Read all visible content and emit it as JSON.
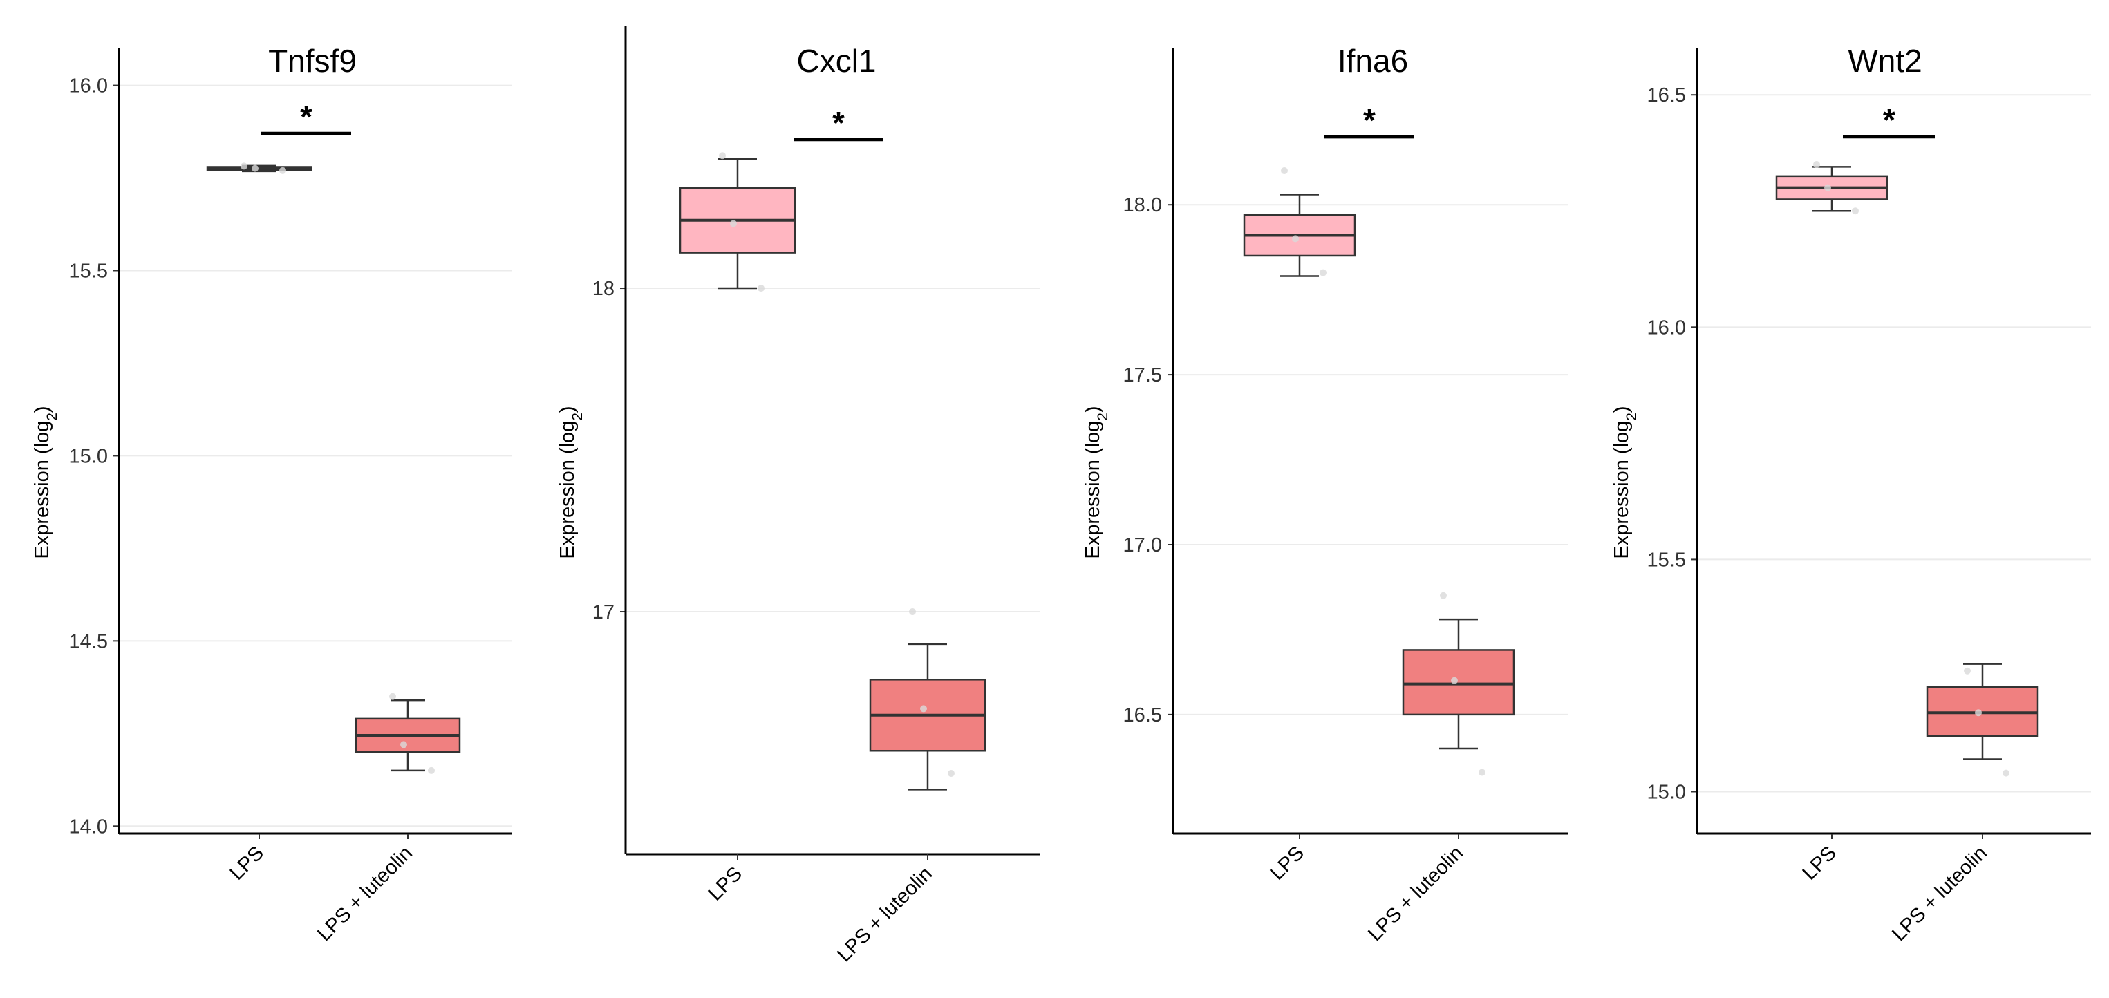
{
  "colors": {
    "lps": "#FFB6C1",
    "lps_luteolin": "#F08080",
    "grid": "#EBEBEB",
    "axis": "#000000",
    "point": "#D9D9D9"
  },
  "chart_data": [
    {
      "type": "box",
      "title": "Tnfsf9",
      "ylabel_main": "Expression (log",
      "ylabel_sub": "2",
      "ylabel_end": ")",
      "categories": [
        "LPS",
        "LPS + luteolin"
      ],
      "ylim": [
        13.98,
        16.1
      ],
      "yticks": [
        14.0,
        14.5,
        15.0,
        15.5,
        16.0
      ],
      "ytick_labels": [
        "14.0",
        "14.5",
        "15.0",
        "15.5",
        "16.0"
      ],
      "boxes": [
        {
          "category": "LPS",
          "min": 15.768,
          "q1": 15.772,
          "median": 15.776,
          "q3": 15.78,
          "max": 15.783,
          "points": [
            15.782,
            15.77,
            15.776
          ]
        },
        {
          "category": "LPS + luteolin",
          "min": 14.15,
          "q1": 14.2,
          "median": 14.245,
          "q3": 14.29,
          "max": 14.34,
          "points": [
            14.35,
            14.15,
            14.22
          ]
        }
      ],
      "significance": {
        "label": "*",
        "y": 15.87
      }
    },
    {
      "type": "box",
      "title": "Cxcl1",
      "ylabel_main": "Expression (log",
      "ylabel_sub": "2",
      "ylabel_end": ")",
      "categories": [
        "LPS",
        "LPS + luteolin"
      ],
      "ylim": [
        16.25,
        18.81
      ],
      "yticks": [
        17,
        18
      ],
      "ytick_labels": [
        "17",
        "18"
      ],
      "boxes": [
        {
          "category": "LPS",
          "min": 18.0,
          "q1": 18.11,
          "median": 18.21,
          "q3": 18.31,
          "max": 18.4,
          "points": [
            18.41,
            18.0,
            18.2
          ]
        },
        {
          "category": "LPS + luteolin",
          "min": 16.45,
          "q1": 16.57,
          "median": 16.68,
          "q3": 16.79,
          "max": 16.9,
          "points": [
            17.0,
            16.5,
            16.7
          ]
        }
      ],
      "significance": {
        "label": "*",
        "y": 18.46
      }
    },
    {
      "type": "box",
      "title": "Ifna6",
      "ylabel_main": "Expression (log",
      "ylabel_sub": "2",
      "ylabel_end": ")",
      "categories": [
        "LPS",
        "LPS + luteolin"
      ],
      "ylim": [
        16.15,
        18.46
      ],
      "yticks": [
        16.5,
        17.0,
        17.5,
        18.0
      ],
      "ytick_labels": [
        "16.5",
        "17.0",
        "17.5",
        "18.0"
      ],
      "boxes": [
        {
          "category": "LPS",
          "min": 17.79,
          "q1": 17.85,
          "median": 17.91,
          "q3": 17.97,
          "max": 18.03,
          "points": [
            18.1,
            17.8,
            17.9
          ]
        },
        {
          "category": "LPS + luteolin",
          "min": 16.4,
          "q1": 16.5,
          "median": 16.59,
          "q3": 16.69,
          "max": 16.78,
          "points": [
            16.85,
            16.33,
            16.6
          ]
        }
      ],
      "significance": {
        "label": "*",
        "y": 18.2
      }
    },
    {
      "type": "box",
      "title": "Wnt2",
      "ylabel_main": "Expression (log",
      "ylabel_sub": "2",
      "ylabel_end": ")",
      "categories": [
        "LPS",
        "LPS + luteolin"
      ],
      "ylim": [
        14.91,
        16.6
      ],
      "yticks": [
        15.0,
        15.5,
        16.0,
        16.5
      ],
      "ytick_labels": [
        "15.0",
        "15.5",
        "16.0",
        "16.5"
      ],
      "boxes": [
        {
          "category": "LPS",
          "min": 16.25,
          "q1": 16.275,
          "median": 16.3,
          "q3": 16.325,
          "max": 16.345,
          "points": [
            16.35,
            16.25,
            16.3
          ]
        },
        {
          "category": "LPS + luteolin",
          "min": 15.07,
          "q1": 15.12,
          "median": 15.17,
          "q3": 15.225,
          "max": 15.275,
          "points": [
            15.26,
            15.04,
            15.17
          ]
        }
      ],
      "significance": {
        "label": "*",
        "y": 16.41
      }
    }
  ]
}
